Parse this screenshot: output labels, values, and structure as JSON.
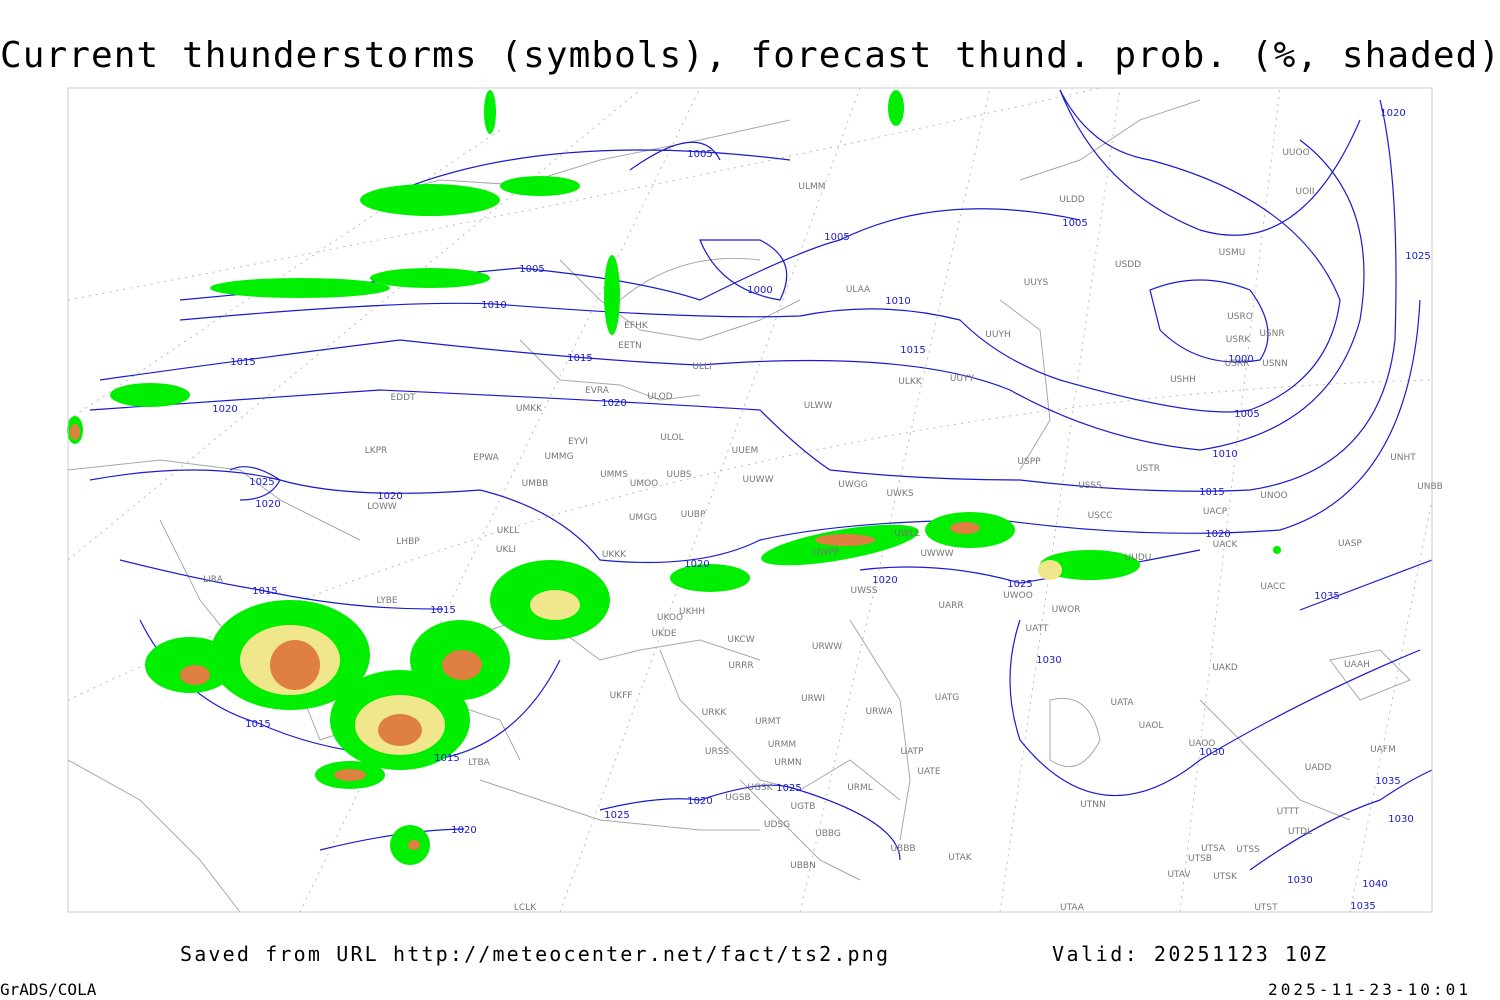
{
  "title": "Current thunderstorms (symbols), forecast thund. prob. (%, shaded)",
  "footer": {
    "source": "Saved from URL  http://meteocenter.net/fact/ts2.png",
    "valid": "Valid: 20251123 10Z",
    "software": "GrADS/COLA",
    "timestamp": "2025-11-23-10:01"
  },
  "isobar_labels": [
    1005,
    1005,
    1005,
    1005,
    1000,
    1010,
    1010,
    1015,
    1015,
    1015,
    1020,
    1020,
    1025,
    1020,
    1020,
    1020,
    1025,
    1000,
    1005,
    1010,
    1015,
    1020,
    1020,
    1020,
    1025,
    1035,
    1015,
    1015,
    1015,
    1015,
    1030,
    1030,
    1025,
    1020,
    1025,
    1020,
    1035,
    1030,
    1030,
    1040,
    1035
  ],
  "stations": [
    "ULMM",
    "ULDD",
    "UUOO",
    "UOII",
    "USMU",
    "USDD",
    "ULAA",
    "UUYS",
    "USRO",
    "USNR",
    "USRK",
    "USRR",
    "USNN",
    "UUYH",
    "EFHK",
    "EETN",
    "ULLI",
    "USHH",
    "ULKK",
    "UUYY",
    "EVRA",
    "ULOD",
    "EDDT",
    "ULWW",
    "UMKK",
    "ULOL",
    "EYVI",
    "UUEM",
    "LKPR",
    "EPWA",
    "UMMG",
    "USPP",
    "UNHT",
    "USTR",
    "UMMS",
    "UUBS",
    "UMOO",
    "UUWW",
    "UMBB",
    "UWGG",
    "USSS",
    "UNBB",
    "UWKS",
    "UNOO",
    "LOWW",
    "UACP",
    "UMGG",
    "UUBP",
    "USCC",
    "UKLL",
    "UACK",
    "LHBP",
    "UWLL",
    "UASP",
    "UKLI",
    "UKKK",
    "UWPP",
    "UWWW",
    "UUDU",
    "UKHH",
    "UKOO",
    "UKDE",
    "LIRA",
    "LYBE",
    "UWSS",
    "UWOO",
    "UWOR",
    "UARR",
    "UACC",
    "UATT",
    "UKCW",
    "URWW",
    "URRR",
    "UAKD",
    "UAAH",
    "UKFF",
    "URWI",
    "UATG",
    "URKK",
    "URWA",
    "UATA",
    "URMT",
    "UAOL",
    "URSS",
    "URMM",
    "UATP",
    "UAOO",
    "UAFM",
    "LTBA",
    "URMN",
    "UATE",
    "UADD",
    "UGSK",
    "URML",
    "UGSB",
    "UGTB",
    "UTNN",
    "UDSG",
    "UBBG",
    "UBBB",
    "UTAK",
    "UTSA",
    "UTSS",
    "UTSB",
    "UBBN",
    "UTAV",
    "UTSK",
    "LCLK",
    "UTAA",
    "UTST",
    "UTDL",
    "UTTT"
  ]
}
